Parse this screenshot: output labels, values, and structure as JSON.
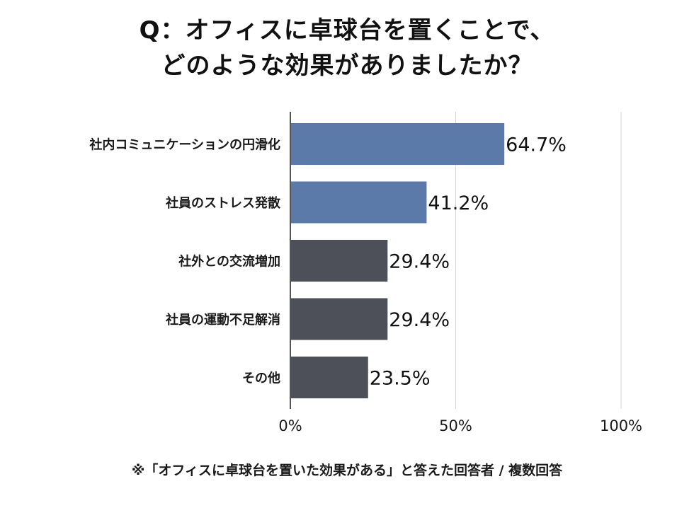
{
  "chart_data": {
    "type": "bar",
    "orientation": "horizontal",
    "title_lines": [
      "Q：オフィスに卓球台を置くことで、",
      "どのような効果がありましたか？"
    ],
    "categories": [
      "社内コミュニケーションの円滑化",
      "社員のストレス発散",
      "社外との交流増加",
      "社員の運動不足解消",
      "その他"
    ],
    "values": [
      64.7,
      41.2,
      29.4,
      29.4,
      23.5
    ],
    "value_labels": [
      "64.7%",
      "41.2%",
      "29.4%",
      "29.4%",
      "23.5%"
    ],
    "bar_colors": [
      "#5b7aa9",
      "#5b7aa9",
      "#4d5059",
      "#4d5059",
      "#4d5059"
    ],
    "xlim": [
      0,
      100
    ],
    "x_ticks": [
      0,
      50,
      100
    ],
    "x_tick_labels": [
      "0%",
      "50%",
      "100%"
    ],
    "grid": true,
    "xlabel": "",
    "ylabel": "",
    "footnote": "※「オフィスに卓球台を置いた効果がある」と答えた回答者 / 複数回答"
  }
}
